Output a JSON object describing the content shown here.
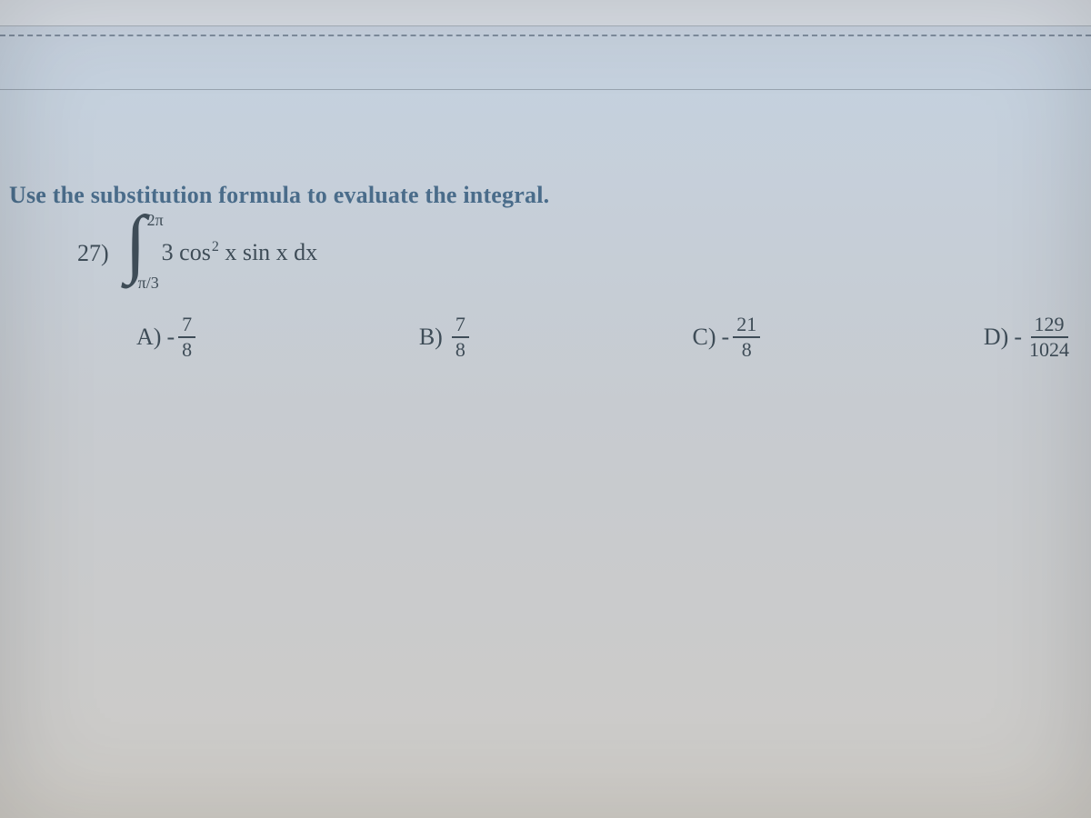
{
  "colors": {
    "instruction": "#4a6c8a",
    "body_text": "#3e4c57",
    "dashed_rule": "#6e7d8e",
    "thin_rule": "#8c97a3",
    "background_top": "#c9d3e0",
    "background_bottom": "#d2cfc9"
  },
  "typography": {
    "instruction_fontsize_pt": 20,
    "body_fontsize_pt": 20,
    "limits_fontsize_pt": 13,
    "fraction_fontsize_pt": 16,
    "font_family": "Times New Roman"
  },
  "question": {
    "instruction": "Use the substitution formula to evaluate the integral.",
    "number": "27)",
    "integral": {
      "symbol": "∫",
      "upper_limit": "2π",
      "lower_limit": "π/3",
      "integrand_prefix": "3 cos",
      "integrand_exponent": "2",
      "integrand_suffix": " x sin x dx"
    },
    "choices": [
      {
        "label": "A)",
        "sign": "-",
        "numerator": "7",
        "denominator": "8"
      },
      {
        "label": "B)",
        "sign": "",
        "numerator": "7",
        "denominator": "8"
      },
      {
        "label": "C)",
        "sign": "-",
        "numerator": "21",
        "denominator": "8"
      },
      {
        "label": "D)",
        "sign": "-",
        "numerator": "129",
        "denominator": "1024"
      }
    ]
  }
}
